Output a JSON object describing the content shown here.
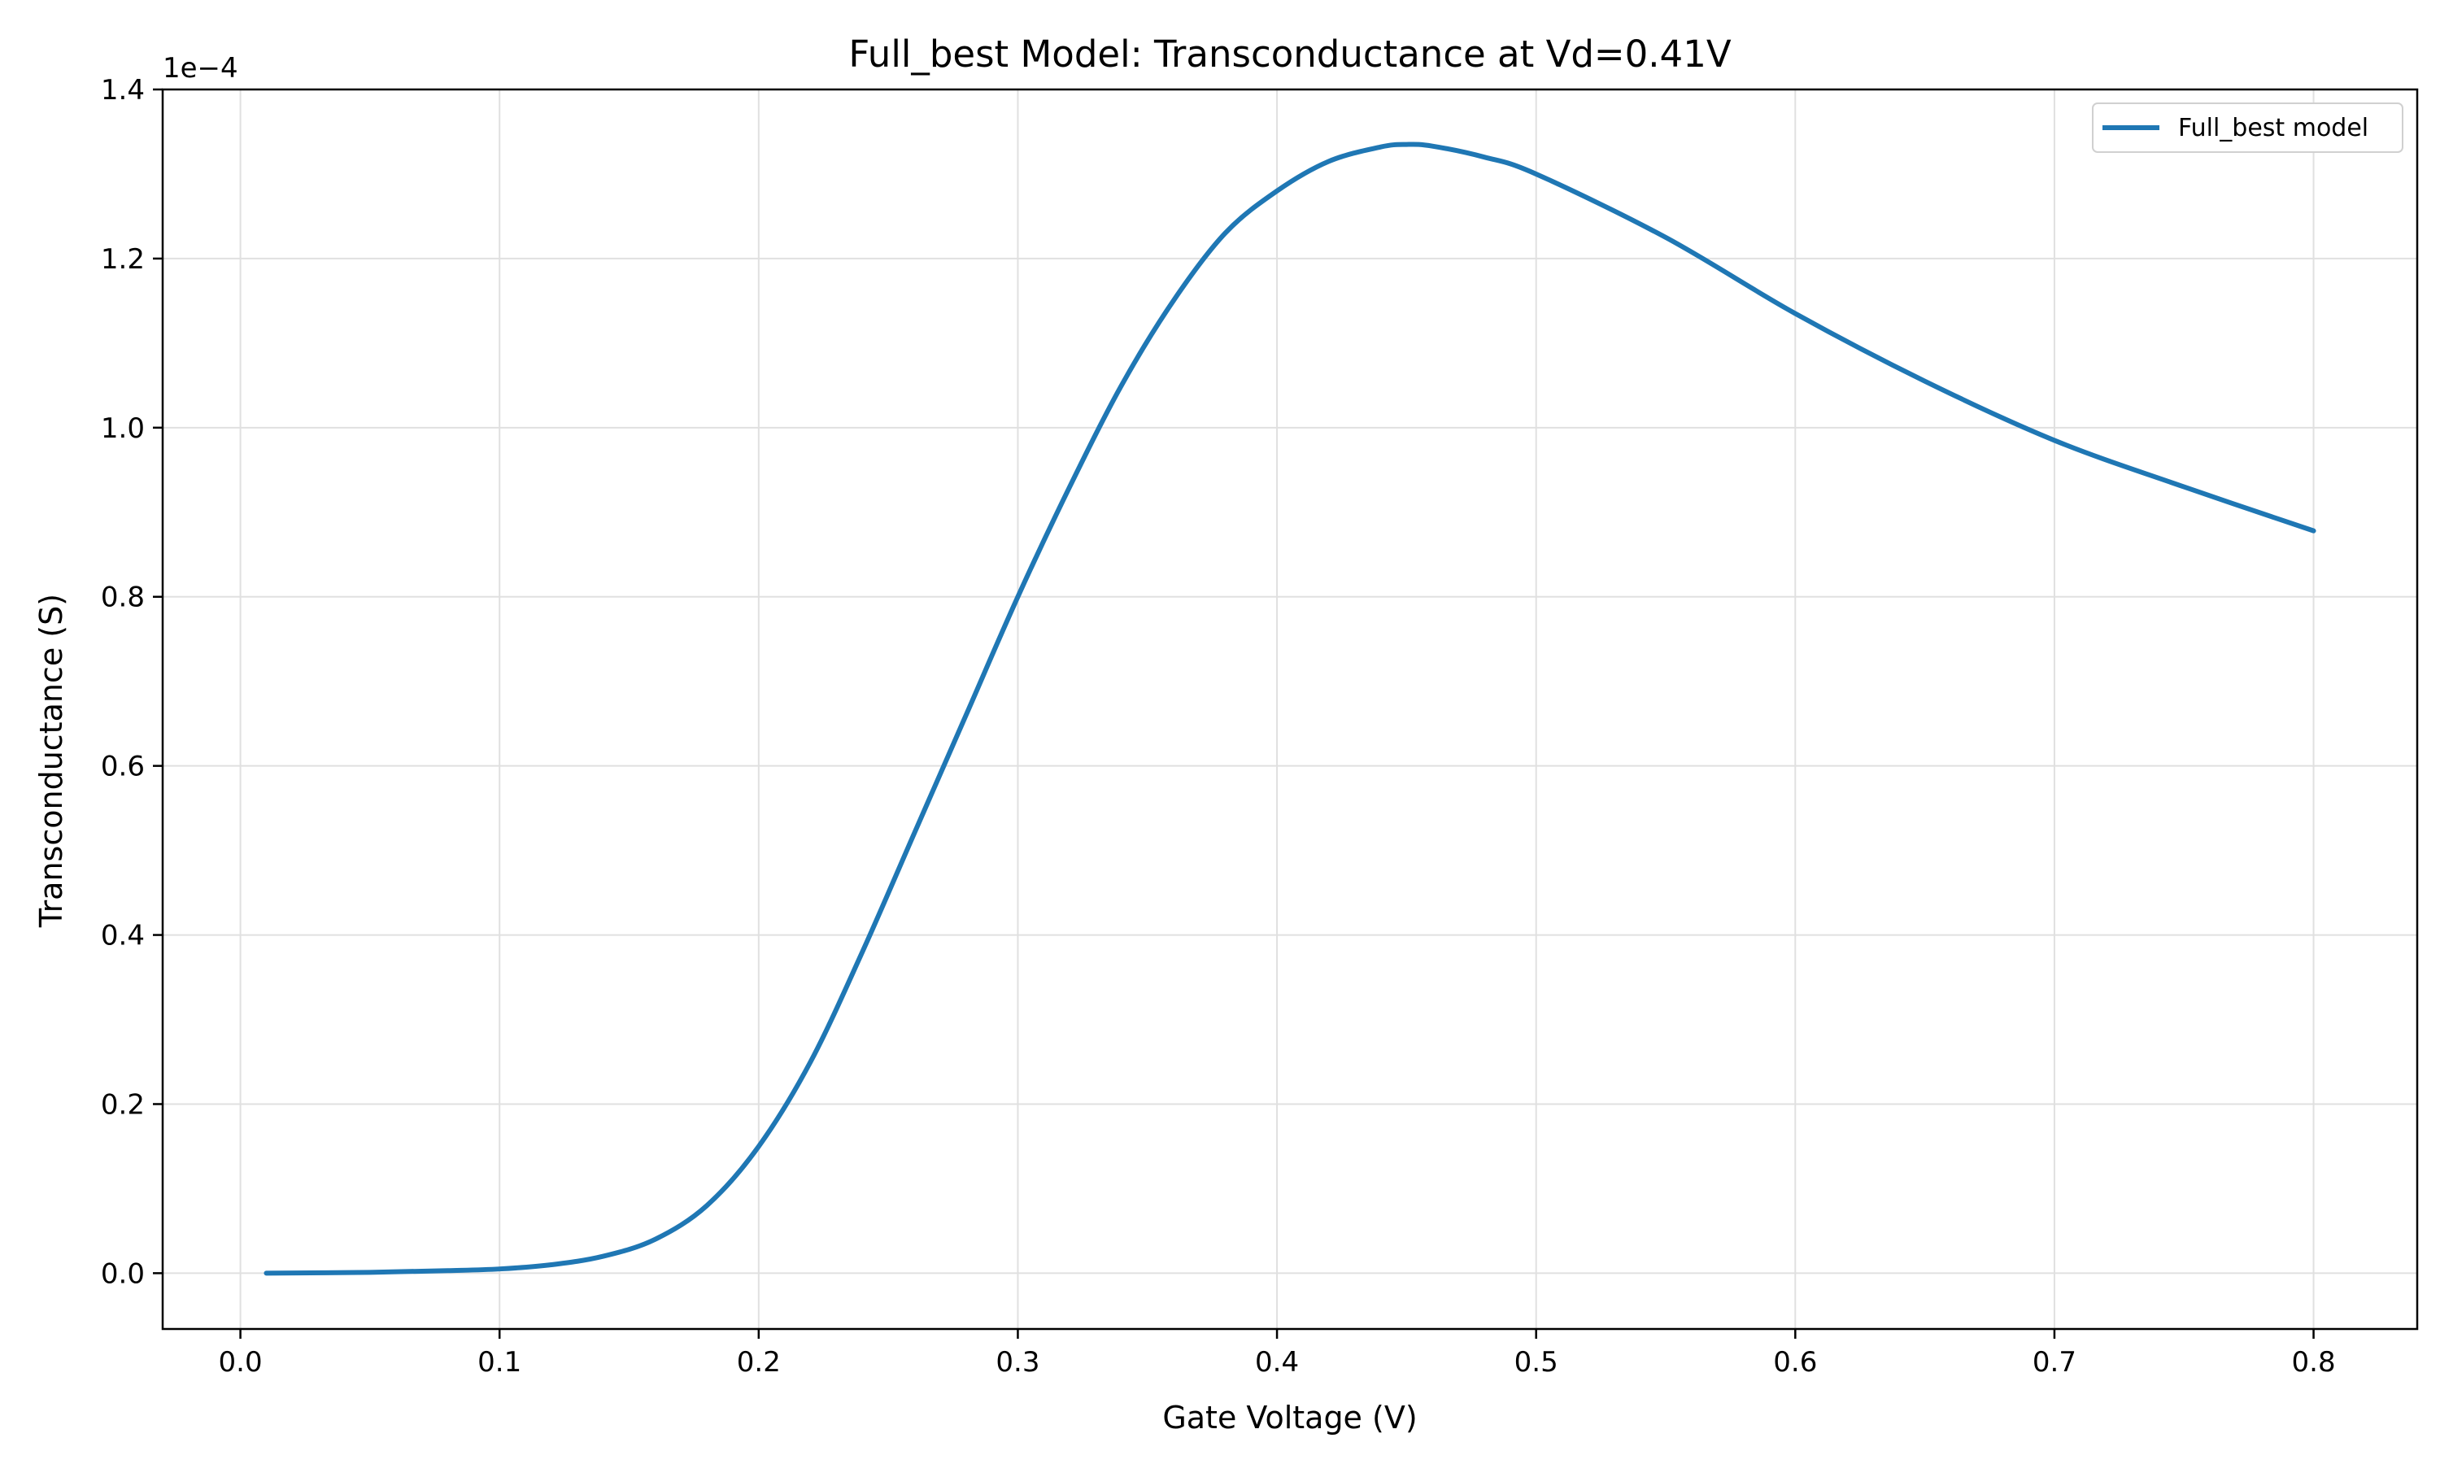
{
  "chart_data": {
    "type": "line",
    "title": "Full_best Model: Transconductance at Vd=0.41V",
    "xlabel": "Gate Voltage (V)",
    "ylabel": "Transconductance (S)",
    "y_offset_label": "1e−4",
    "xlim": [
      -0.03,
      0.84
    ],
    "ylim": [
      -0.066,
      1.4
    ],
    "x_ticks": [
      0.0,
      0.1,
      0.2,
      0.3,
      0.4,
      0.5,
      0.6,
      0.7,
      0.8
    ],
    "x_tick_labels": [
      "0.0",
      "0.1",
      "0.2",
      "0.3",
      "0.4",
      "0.5",
      "0.6",
      "0.7",
      "0.8"
    ],
    "y_ticks": [
      0.0,
      0.2,
      0.4,
      0.6,
      0.8,
      1.0,
      1.2,
      1.4
    ],
    "y_tick_labels": [
      "0.0",
      "0.2",
      "0.4",
      "0.6",
      "0.8",
      "1.0",
      "1.2",
      "1.4"
    ],
    "grid": true,
    "legend_position": "top-right",
    "colors": {
      "series": "#1f77b4",
      "grid": "#e0e0e0"
    },
    "series": [
      {
        "name": "Full_best model",
        "x": [
          0.01,
          0.05,
          0.08,
          0.1,
          0.12,
          0.14,
          0.16,
          0.18,
          0.2,
          0.22,
          0.24,
          0.26,
          0.28,
          0.3,
          0.32,
          0.34,
          0.36,
          0.38,
          0.4,
          0.42,
          0.44,
          0.45,
          0.46,
          0.48,
          0.5,
          0.55,
          0.6,
          0.65,
          0.7,
          0.75,
          0.8
        ],
        "y": [
          0.0,
          0.001,
          0.003,
          0.005,
          0.01,
          0.02,
          0.04,
          0.08,
          0.15,
          0.25,
          0.38,
          0.52,
          0.66,
          0.8,
          0.93,
          1.05,
          1.15,
          1.23,
          1.28,
          1.315,
          1.332,
          1.335,
          1.333,
          1.32,
          1.3,
          1.225,
          1.135,
          1.055,
          0.985,
          0.93,
          0.878
        ]
      }
    ]
  }
}
